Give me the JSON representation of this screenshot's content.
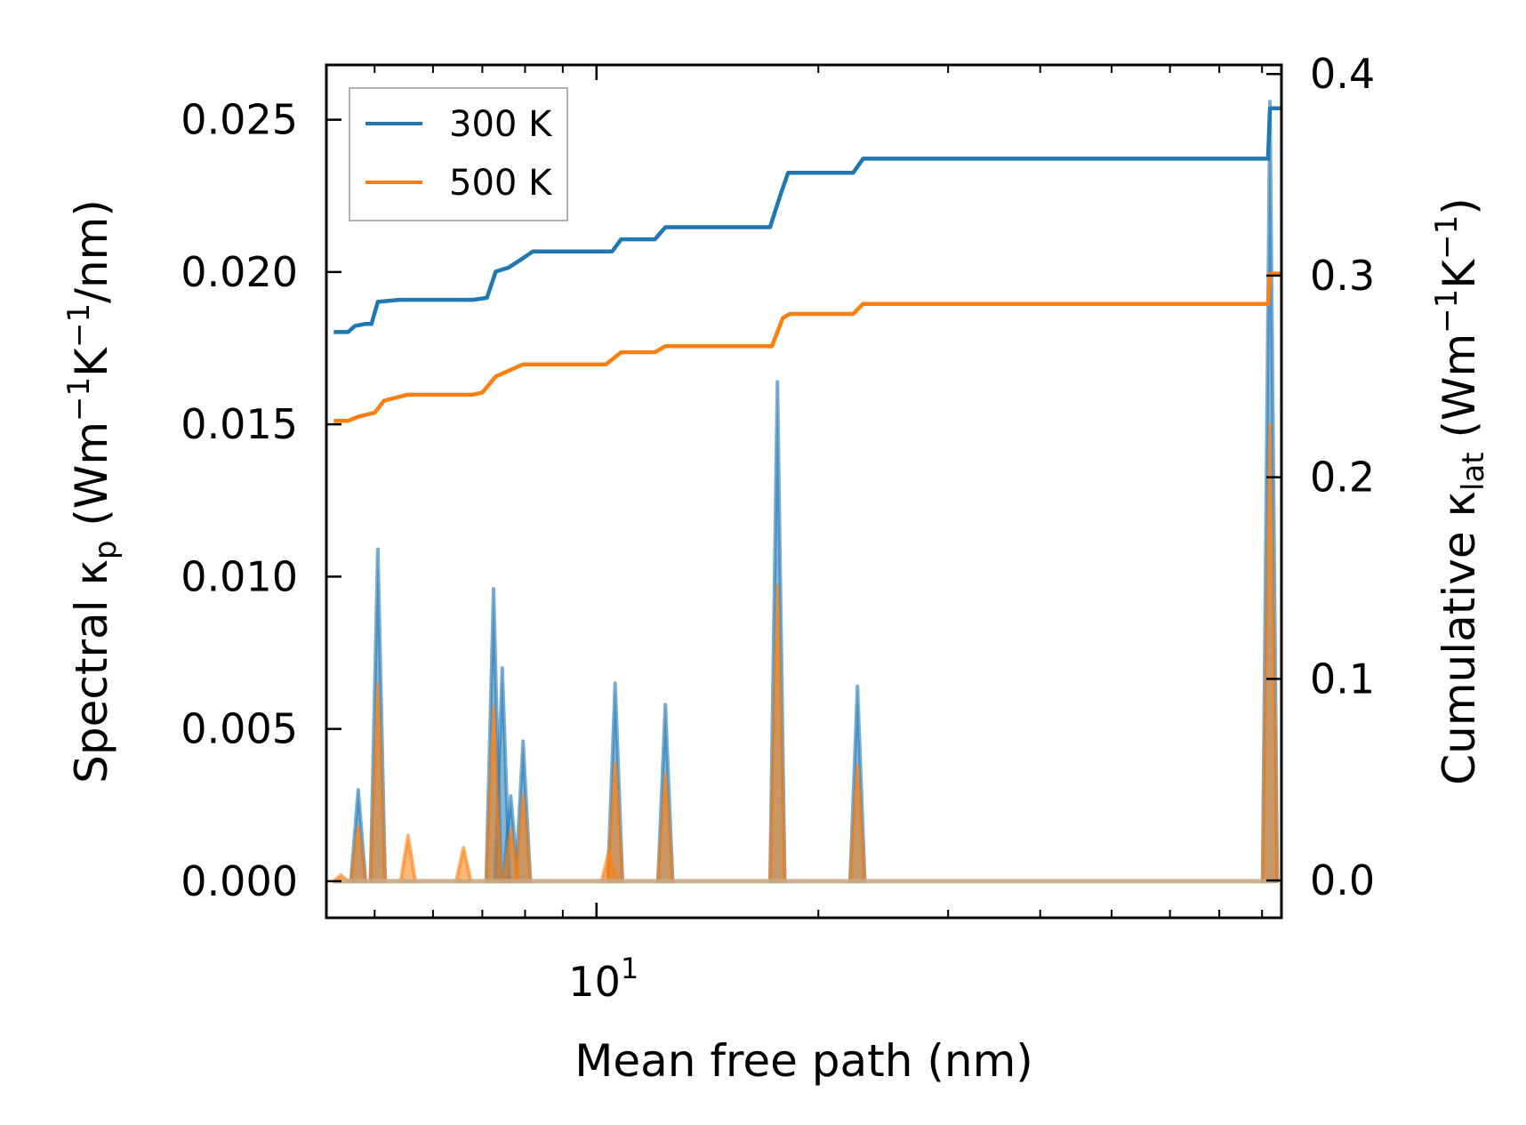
{
  "chart_data": {
    "type": "line",
    "title": "",
    "xlabel": "Mean free path (nm)",
    "xscale": "log",
    "xlim": [
      4.3,
      85
    ],
    "x_tick_label": "10^1",
    "x_tick_label_parts": {
      "base": "10",
      "exp": "1"
    },
    "ylabel_left": {
      "prefix": "Spectral κ",
      "sub": "p",
      "middle": " (Wm",
      "sup1": "−1",
      "k": "K",
      "sup2": "−1",
      "suffix": "/nm)"
    },
    "ylabel_right": {
      "prefix": "Cumulative κ",
      "sub": "lat",
      "middle": " (Wm",
      "sup1": "−1",
      "k": "K",
      "sup2": "−1",
      "suffix": ")"
    },
    "ylim_left": [
      -0.0012,
      0.0268
    ],
    "ylim_right": [
      -0.0185,
      0.4045
    ],
    "yticks_left": [
      "0.000",
      "0.005",
      "0.010",
      "0.015",
      "0.020",
      "0.025"
    ],
    "yticks_right": [
      "0.0",
      "0.1",
      "0.2",
      "0.3",
      "0.4"
    ],
    "legend": {
      "position": "top-left",
      "entries": [
        {
          "label": "300 K",
          "color": "#1f77b4"
        },
        {
          "label": "500 K",
          "color": "#ff7f0e"
        }
      ]
    },
    "series": [
      {
        "name": "300 K",
        "color": "#1f77b4",
        "axis": "left",
        "kind": "spectral",
        "peaks": [
          {
            "x": 4.75,
            "y": 0.003
          },
          {
            "x": 5.05,
            "y": 0.0109
          },
          {
            "x": 7.25,
            "y": 0.0096
          },
          {
            "x": 7.45,
            "y": 0.007
          },
          {
            "x": 7.65,
            "y": 0.0028
          },
          {
            "x": 7.95,
            "y": 0.0046
          },
          {
            "x": 10.6,
            "y": 0.0065
          },
          {
            "x": 12.4,
            "y": 0.0058
          },
          {
            "x": 17.6,
            "y": 0.0164
          },
          {
            "x": 22.6,
            "y": 0.0064
          },
          {
            "x": 82.0,
            "y": 0.0256
          }
        ]
      },
      {
        "name": "500 K",
        "color": "#ff7f0e",
        "axis": "left",
        "kind": "spectral",
        "peaks": [
          {
            "x": 4.5,
            "y": 0.0002
          },
          {
            "x": 4.75,
            "y": 0.0018
          },
          {
            "x": 5.05,
            "y": 0.0065
          },
          {
            "x": 5.55,
            "y": 0.0015
          },
          {
            "x": 6.6,
            "y": 0.0011
          },
          {
            "x": 7.25,
            "y": 0.0057
          },
          {
            "x": 7.65,
            "y": 0.0017
          },
          {
            "x": 7.95,
            "y": 0.0028
          },
          {
            "x": 10.4,
            "y": 0.001
          },
          {
            "x": 10.6,
            "y": 0.0039
          },
          {
            "x": 12.4,
            "y": 0.0035
          },
          {
            "x": 17.6,
            "y": 0.0097
          },
          {
            "x": 22.6,
            "y": 0.0038
          },
          {
            "x": 82.0,
            "y": 0.015
          }
        ]
      },
      {
        "name": "300 K",
        "color": "#1f77b4",
        "axis": "right",
        "kind": "cumulative",
        "points": [
          [
            4.4,
            0.272
          ],
          [
            4.6,
            0.272
          ],
          [
            4.7,
            0.275
          ],
          [
            4.85,
            0.276
          ],
          [
            4.95,
            0.276
          ],
          [
            5.05,
            0.287
          ],
          [
            5.4,
            0.288
          ],
          [
            6.8,
            0.288
          ],
          [
            7.1,
            0.289
          ],
          [
            7.3,
            0.302
          ],
          [
            7.6,
            0.304
          ],
          [
            7.9,
            0.308
          ],
          [
            8.2,
            0.312
          ],
          [
            10.5,
            0.312
          ],
          [
            10.8,
            0.318
          ],
          [
            12.0,
            0.318
          ],
          [
            12.4,
            0.324
          ],
          [
            17.2,
            0.324
          ],
          [
            17.8,
            0.341
          ],
          [
            18.2,
            0.351
          ],
          [
            22.3,
            0.351
          ],
          [
            23.0,
            0.358
          ],
          [
            81.5,
            0.358
          ],
          [
            82.0,
            0.383
          ],
          [
            85.0,
            0.383
          ]
        ]
      },
      {
        "name": "500 K",
        "color": "#ff7f0e",
        "axis": "right",
        "kind": "cumulative",
        "points": [
          [
            4.4,
            0.228
          ],
          [
            4.6,
            0.228
          ],
          [
            4.75,
            0.23
          ],
          [
            5.0,
            0.232
          ],
          [
            5.15,
            0.238
          ],
          [
            5.55,
            0.241
          ],
          [
            6.8,
            0.241
          ],
          [
            7.0,
            0.242
          ],
          [
            7.3,
            0.25
          ],
          [
            7.95,
            0.256
          ],
          [
            10.3,
            0.256
          ],
          [
            10.8,
            0.262
          ],
          [
            12.0,
            0.262
          ],
          [
            12.4,
            0.265
          ],
          [
            17.3,
            0.265
          ],
          [
            17.9,
            0.279
          ],
          [
            18.3,
            0.281
          ],
          [
            22.3,
            0.281
          ],
          [
            23.0,
            0.286
          ],
          [
            81.5,
            0.286
          ],
          [
            82.0,
            0.301
          ],
          [
            85.0,
            0.301
          ]
        ]
      }
    ]
  }
}
